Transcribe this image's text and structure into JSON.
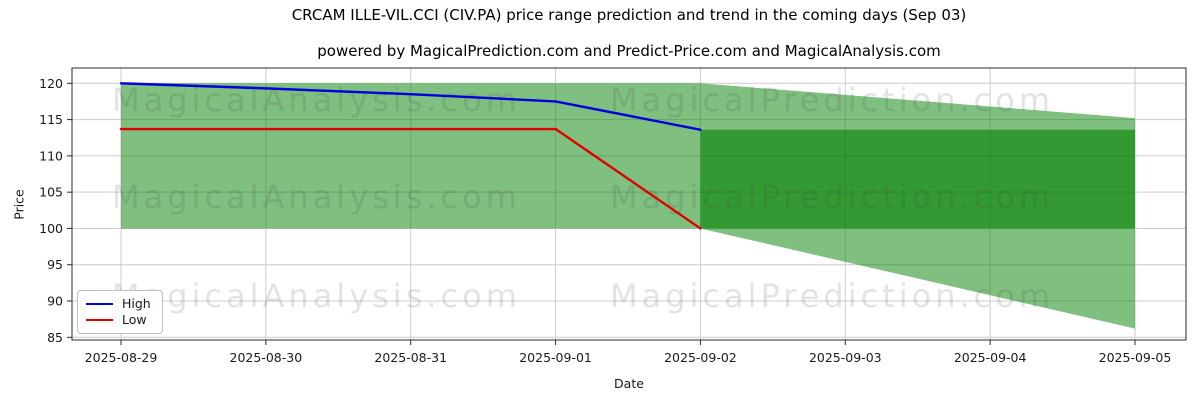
{
  "chart_data": {
    "type": "line",
    "title": "CRCAM ILLE-VIL.CCI (CIV.PA) price range prediction and trend in the coming days (Sep 03)",
    "subtitle": "powered by MagicalPrediction.com and Predict-Price.com and MagicalAnalysis.com",
    "xlabel": "Date",
    "ylabel": "Price",
    "x": [
      "2025-08-29",
      "2025-08-30",
      "2025-08-31",
      "2025-09-01",
      "2025-09-02",
      "2025-09-03",
      "2025-09-04",
      "2025-09-05"
    ],
    "yticks": [
      85,
      90,
      95,
      100,
      105,
      110,
      115,
      120
    ],
    "ylim": [
      84.5,
      122
    ],
    "grid": true,
    "legend_position": "lower left",
    "band_color": "#008000",
    "series": [
      {
        "name": "High",
        "color": "#0000dd",
        "x_start": 0,
        "values": [
          120,
          119.3,
          118.5,
          117.5,
          113.6
        ]
      },
      {
        "name": "Low",
        "color": "#e00000",
        "x_start": 0,
        "values": [
          113.7,
          113.7,
          113.7,
          113.7,
          100
        ]
      }
    ],
    "bands": [
      {
        "name": "history-range",
        "x_start": 0,
        "opacity": 0.5,
        "top": [
          120,
          120,
          120,
          120,
          120
        ],
        "bottom": [
          100,
          100,
          100,
          100,
          100
        ]
      },
      {
        "name": "forecast-cone",
        "x_start": 4,
        "opacity": 0.5,
        "top": [
          120,
          118.4,
          116.8,
          115.2
        ],
        "bottom": [
          100,
          95.4,
          90.8,
          86.2
        ]
      },
      {
        "name": "forecast-range",
        "x_start": 4,
        "opacity": 0.6,
        "top": [
          113.6,
          113.6,
          113.6,
          113.6
        ],
        "bottom": [
          100,
          100,
          100,
          100
        ]
      }
    ]
  },
  "watermarks": {
    "left_text": "MagicalAnalysis.com",
    "right_text": "MagicalPrediction.com"
  }
}
